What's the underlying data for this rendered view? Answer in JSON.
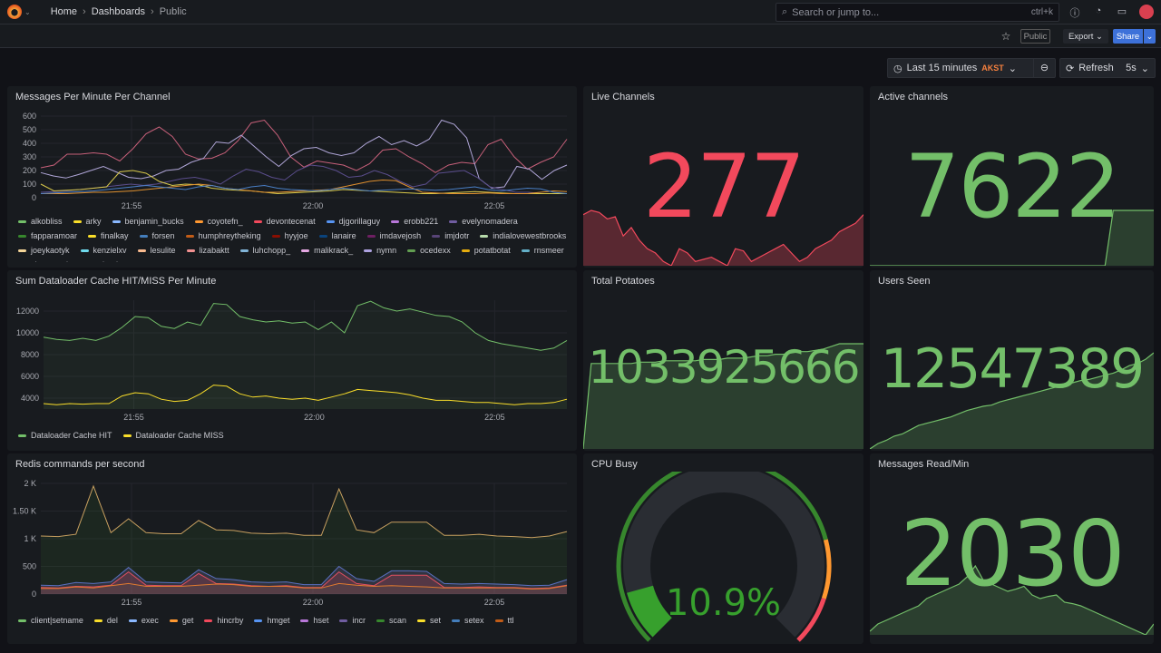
{
  "nav": {
    "breadcrumbs": [
      "Home",
      "Dashboards",
      "Public"
    ],
    "search_placeholder": "Search or jump to...",
    "search_shortcut": "ctrl+k"
  },
  "toolbar": {
    "public_badge": "Public",
    "export_label": "Export",
    "share_label": "Share",
    "time_range": "Last 15 minutes",
    "timezone": "AKST",
    "refresh_label": "Refresh",
    "refresh_interval": "5s"
  },
  "colors": {
    "green": "#73bf69",
    "red": "#f2495c",
    "orange": "#ff9830",
    "accent": "#3d71d9"
  },
  "panels": {
    "messages": {
      "title": "Messages Per Minute Per Channel"
    },
    "dataloader": {
      "title": "Sum Dataloader Cache HIT/MISS Per Minute"
    },
    "redis": {
      "title": "Redis commands per second"
    },
    "live": {
      "title": "Live Channels",
      "value": "277",
      "color": "#f2495c",
      "spark": [
        230,
        240,
        235,
        220,
        225,
        180,
        200,
        170,
        150,
        140,
        120,
        110,
        150,
        140,
        120,
        125,
        130,
        120,
        110,
        150,
        145,
        120,
        130,
        140,
        150,
        160,
        140,
        120,
        130,
        150,
        160,
        170,
        190,
        200,
        210,
        230
      ]
    },
    "active": {
      "title": "Active channels",
      "value": "7622",
      "color": "#73bf69",
      "spark": [
        0,
        0,
        0,
        0,
        0,
        0,
        0,
        0,
        0,
        0,
        0,
        0,
        0,
        0,
        0,
        0,
        0,
        0,
        0,
        0,
        0,
        0,
        0,
        0,
        0,
        0,
        0,
        0,
        0,
        0,
        7622,
        7622,
        7622,
        7622,
        7622,
        7622
      ]
    },
    "potatoes": {
      "title": "Total Potatoes",
      "value": "1033925666",
      "color": "#73bf69",
      "spark": [
        0,
        65,
        65,
        65,
        65,
        65,
        65,
        66,
        66,
        66,
        67,
        67,
        67,
        67,
        67,
        68,
        68,
        68,
        69,
        69,
        69,
        70,
        71,
        71,
        72,
        72,
        73,
        74,
        74,
        75,
        76,
        78,
        80,
        80,
        80,
        80
      ]
    },
    "users": {
      "title": "Users Seen",
      "value": "12547389",
      "color": "#73bf69",
      "spark": [
        0,
        5,
        8,
        12,
        14,
        18,
        22,
        24,
        26,
        28,
        30,
        33,
        36,
        38,
        40,
        41,
        44,
        46,
        48,
        50,
        52,
        54,
        56,
        58,
        60,
        62,
        64,
        65,
        67,
        69,
        71,
        74,
        78,
        80,
        84,
        90
      ]
    },
    "cpu": {
      "title": "CPU Busy",
      "value": "10.9%",
      "percent": 10.9,
      "thresholds": [
        {
          "to": 78,
          "color": "#37872d"
        },
        {
          "to": 90,
          "color": "#ff9830"
        },
        {
          "to": 100,
          "color": "#f2495c"
        }
      ]
    },
    "readmin": {
      "title": "Messages Read/Min",
      "value": "2030",
      "color": "#73bf69",
      "spark": [
        10,
        20,
        25,
        30,
        35,
        40,
        45,
        55,
        60,
        65,
        70,
        75,
        85,
        100,
        80,
        75,
        70,
        65,
        68,
        72,
        60,
        55,
        58,
        60,
        50,
        48,
        45,
        40,
        35,
        30,
        25,
        20,
        15,
        10,
        5,
        20
      ]
    }
  },
  "chart_data": [
    {
      "id": "messages",
      "type": "line",
      "xlim": [
        "21:52:30",
        "22:07:00"
      ],
      "xticks": [
        "21:55",
        "22:00",
        "22:05"
      ],
      "ylim": [
        0,
        600
      ],
      "yticks": [
        0,
        100,
        200,
        300,
        400,
        500,
        600
      ],
      "grid": true,
      "legend_placement": "bottom",
      "legend": [
        {
          "name": "alkobliss",
          "color": "#73bf69"
        },
        {
          "name": "arky",
          "color": "#fade2a"
        },
        {
          "name": "benjamin_bucks",
          "color": "#8ab8ff"
        },
        {
          "name": "coyotefn_",
          "color": "#ff9830"
        },
        {
          "name": "devontecenat",
          "color": "#f2495c"
        },
        {
          "name": "djgorillaguy",
          "color": "#5794f2"
        },
        {
          "name": "erobb221",
          "color": "#b877d9"
        },
        {
          "name": "evelynomadera",
          "color": "#705da0"
        },
        {
          "name": "fapparamoar",
          "color": "#37872d"
        },
        {
          "name": "finalkay",
          "color": "#fade2a"
        },
        {
          "name": "forsen",
          "color": "#447ebc"
        },
        {
          "name": "humphreytheking",
          "color": "#c15c17"
        },
        {
          "name": "hyyjoe",
          "color": "#890f02"
        },
        {
          "name": "lanaire",
          "color": "#0a437c"
        },
        {
          "name": "imdavejosh",
          "color": "#6d1f62"
        },
        {
          "name": "imjdotr",
          "color": "#584477"
        },
        {
          "name": "indialovewestbrooks",
          "color": "#b7dbab"
        },
        {
          "name": "joeykaotyk",
          "color": "#f4d598"
        },
        {
          "name": "kenzielxv",
          "color": "#70dbed"
        },
        {
          "name": "lesulite",
          "color": "#f9ba8f"
        },
        {
          "name": "lizabaktt",
          "color": "#f29191"
        },
        {
          "name": "luhchopp_",
          "color": "#82b5d8"
        },
        {
          "name": "malikrack_",
          "color": "#e5a8e2"
        },
        {
          "name": "nymn",
          "color": "#aea2e0"
        },
        {
          "name": "ocedexx",
          "color": "#629e51"
        },
        {
          "name": "potatbotat",
          "color": "#e5ac0e"
        },
        {
          "name": "rnsmeer",
          "color": "#64b0c8"
        },
        {
          "name": "slumpgeekn",
          "color": "#e0752d"
        },
        {
          "name": "sluurh",
          "color": "#bf1b00"
        }
      ],
      "series": [
        {
          "color": "#c8607a",
          "values": [
            220,
            240,
            320,
            320,
            330,
            320,
            270,
            360,
            470,
            520,
            450,
            320,
            285,
            290,
            330,
            420,
            550,
            570,
            460,
            300,
            225,
            270,
            255,
            240,
            200,
            250,
            350,
            360,
            300,
            250,
            185,
            240,
            260,
            250,
            390,
            430,
            300,
            210,
            260,
            300,
            430
          ]
        },
        {
          "color": "#b0a6d8",
          "values": [
            185,
            160,
            145,
            170,
            200,
            230,
            190,
            150,
            140,
            160,
            200,
            210,
            260,
            290,
            410,
            400,
            460,
            380,
            300,
            230,
            310,
            360,
            370,
            330,
            310,
            330,
            400,
            450,
            390,
            420,
            380,
            430,
            570,
            540,
            440,
            140,
            70,
            80,
            230,
            210,
            135,
            200,
            240
          ]
        },
        {
          "color": "#5a4d8c",
          "values": [
            40,
            45,
            50,
            60,
            70,
            80,
            90,
            100,
            90,
            100,
            120,
            140,
            150,
            130,
            100,
            160,
            210,
            190,
            150,
            130,
            200,
            240,
            230,
            200,
            150,
            160,
            200,
            170,
            120,
            80,
            100,
            180,
            190,
            200,
            150,
            80,
            60,
            40,
            40,
            30,
            30,
            30
          ]
        },
        {
          "color": "#d8c84a",
          "values": [
            100,
            50,
            55,
            60,
            70,
            80,
            190,
            200,
            180,
            120,
            90,
            100,
            95,
            70,
            60,
            55,
            50,
            40,
            30,
            35,
            40,
            45,
            50,
            60,
            55,
            50,
            45,
            40,
            35,
            30,
            30,
            35,
            40,
            45,
            40,
            35,
            30,
            30,
            30,
            30,
            30
          ]
        },
        {
          "color": "#e0902f",
          "values": [
            30,
            30,
            30,
            35,
            40,
            40,
            45,
            50,
            60,
            70,
            80,
            90,
            100,
            90,
            70,
            60,
            50,
            40,
            40,
            45,
            50,
            55,
            60,
            80,
            100,
            120,
            130,
            125,
            80,
            40,
            35,
            30,
            30,
            30,
            35,
            30,
            30,
            30,
            40,
            50,
            45
          ]
        },
        {
          "color": "#4a7fc6",
          "values": [
            30,
            35,
            40,
            45,
            50,
            60,
            70,
            80,
            90,
            80,
            70,
            60,
            80,
            90,
            70,
            60,
            80,
            90,
            70,
            60,
            55,
            50,
            60,
            70,
            60,
            50,
            55,
            60,
            65,
            60,
            55,
            60,
            70,
            80,
            60,
            50,
            60,
            70,
            65,
            40,
            30
          ]
        }
      ]
    },
    {
      "id": "dataloader",
      "type": "area",
      "xlim": [
        "21:52:30",
        "22:07:00"
      ],
      "xticks": [
        "21:55",
        "22:00",
        "22:05"
      ],
      "ylim": [
        3000,
        13000
      ],
      "yticks": [
        4000,
        6000,
        8000,
        10000,
        12000
      ],
      "grid": true,
      "legend_placement": "bottom",
      "series": [
        {
          "name": "Dataloader Cache HIT",
          "color": "#73bf69",
          "values": [
            9600,
            9400,
            9300,
            9500,
            9300,
            9700,
            10500,
            11500,
            11400,
            10600,
            10400,
            11000,
            10700,
            12700,
            12600,
            11500,
            11200,
            11000,
            11100,
            10900,
            11000,
            10300,
            11000,
            10000,
            12500,
            12900,
            12300,
            12000,
            12200,
            11900,
            11600,
            11500,
            11000,
            10000,
            9300,
            9000,
            8800,
            8600,
            8400,
            8600,
            9300
          ]
        },
        {
          "name": "Dataloader Cache MISS",
          "color": "#fade2a",
          "values": [
            3500,
            3400,
            3500,
            3450,
            3500,
            3500,
            4200,
            4500,
            4400,
            3900,
            3700,
            3800,
            4400,
            5200,
            5100,
            4400,
            4100,
            4200,
            4000,
            3900,
            4000,
            3800,
            4100,
            4400,
            4800,
            4700,
            4600,
            4500,
            4300,
            4000,
            3800,
            3800,
            3700,
            3600,
            3600,
            3500,
            3400,
            3500,
            3500,
            3600,
            3900
          ]
        }
      ]
    },
    {
      "id": "redis",
      "type": "area",
      "xlim": [
        "21:52:30",
        "22:07:00"
      ],
      "xticks": [
        "21:55",
        "22:00",
        "22:05"
      ],
      "ylim": [
        0,
        2000
      ],
      "yticks": [
        "0",
        "500",
        "1 K",
        "1.50 K",
        "2 K"
      ],
      "grid": true,
      "legend_placement": "bottom",
      "legend": [
        {
          "name": "client|setname",
          "color": "#73bf69"
        },
        {
          "name": "del",
          "color": "#fade2a"
        },
        {
          "name": "exec",
          "color": "#8ab8ff"
        },
        {
          "name": "get",
          "color": "#ff9830"
        },
        {
          "name": "hincrby",
          "color": "#f2495c"
        },
        {
          "name": "hmget",
          "color": "#5794f2"
        },
        {
          "name": "hset",
          "color": "#b877d9"
        },
        {
          "name": "incr",
          "color": "#705da0"
        },
        {
          "name": "scan",
          "color": "#37872d"
        },
        {
          "name": "set",
          "color": "#fade2a"
        },
        {
          "name": "setex",
          "color": "#447ebc"
        },
        {
          "name": "ttl",
          "color": "#c15c17"
        }
      ],
      "series": [
        {
          "color": "#c8a060",
          "fill": "rgba(55,135,45,0.12)",
          "values": [
            1050,
            1040,
            1080,
            1950,
            1110,
            1360,
            1110,
            1090,
            1090,
            1330,
            1160,
            1150,
            1100,
            1090,
            1100,
            1060,
            1060,
            1900,
            1160,
            1110,
            1300,
            1300,
            1300,
            1060,
            1060,
            1080,
            1050,
            1040,
            1020,
            1050,
            1130
          ]
        },
        {
          "color": "#5a70c0",
          "fill": "rgba(112,93,160,0.25)",
          "values": [
            160,
            150,
            210,
            190,
            220,
            480,
            220,
            210,
            200,
            440,
            280,
            260,
            220,
            210,
            220,
            170,
            170,
            500,
            280,
            230,
            420,
            420,
            410,
            190,
            180,
            190,
            180,
            170,
            150,
            160,
            260
          ]
        },
        {
          "color": "#e05060",
          "fill": "rgba(242,73,92,0.18)",
          "values": [
            120,
            110,
            140,
            130,
            160,
            400,
            160,
            150,
            150,
            370,
            190,
            180,
            150,
            140,
            150,
            120,
            120,
            400,
            190,
            150,
            340,
            340,
            340,
            120,
            120,
            130,
            120,
            120,
            100,
            110,
            160
          ]
        },
        {
          "color": "#e07a30",
          "values": [
            100,
            100,
            130,
            110,
            150,
            190,
            140,
            140,
            140,
            160,
            180,
            170,
            140,
            140,
            140,
            110,
            110,
            190,
            160,
            140,
            150,
            140,
            130,
            110,
            110,
            110,
            110,
            110,
            90,
            100,
            150
          ]
        }
      ]
    }
  ]
}
